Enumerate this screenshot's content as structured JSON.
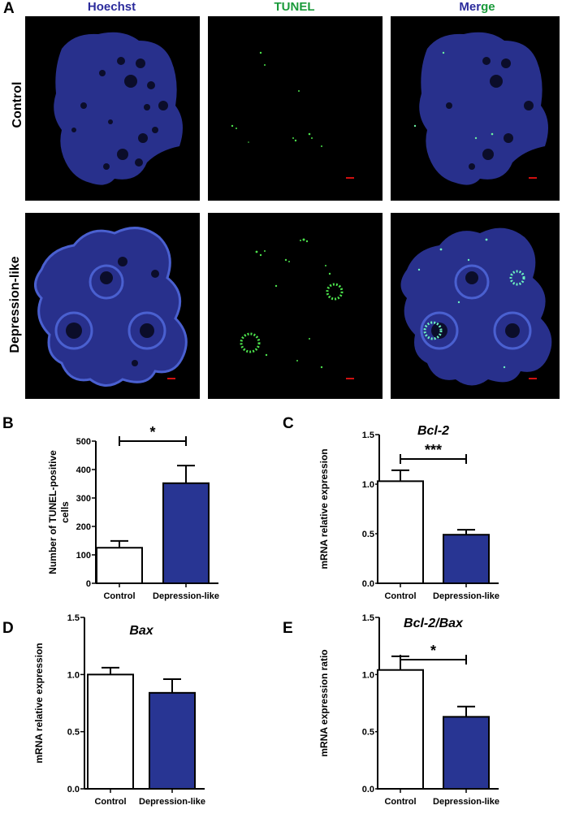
{
  "panel_a": {
    "letter": "A",
    "columns": [
      "Hoechst",
      "TUNEL",
      "Merge"
    ],
    "merge_parts": [
      "Mer",
      "ge"
    ],
    "rows": [
      "Control",
      "Depression-like"
    ],
    "colors": {
      "hoechst_label": "#2c2c9c",
      "tunel_label": "#1a9a3a",
      "blue_tissue": "#28308c",
      "green_signal": "#4be04b",
      "scale_bar": "#d01010"
    }
  },
  "chart_data": [
    {
      "panel": "B",
      "type": "bar",
      "title": "",
      "categories": [
        "Control",
        "Depression-like"
      ],
      "values": [
        125,
        352
      ],
      "errors": [
        24,
        62
      ],
      "ylabel": "Number of TUNEL-positive cells",
      "ylabel_lines": [
        "Number of TUNEL-positive",
        "cells"
      ],
      "ylim": [
        0,
        500
      ],
      "yticks": [
        "0",
        "100",
        "200",
        "300",
        "400",
        "500"
      ],
      "significance": "*",
      "bar_colors": [
        "#ffffff",
        "#283593"
      ]
    },
    {
      "panel": "C",
      "type": "bar",
      "title": "Bcl-2",
      "categories": [
        "Control",
        "Depression-like"
      ],
      "values": [
        1.03,
        0.49
      ],
      "errors": [
        0.11,
        0.05
      ],
      "ylabel": "mRNA relative expression",
      "ylim": [
        0,
        1.5
      ],
      "yticks": [
        "0.0",
        "0.5",
        "1.0",
        "1.5"
      ],
      "significance": "***",
      "bar_colors": [
        "#ffffff",
        "#283593"
      ]
    },
    {
      "panel": "D",
      "type": "bar",
      "title": "Bax",
      "categories": [
        "Control",
        "Depression-like"
      ],
      "values": [
        1.0,
        0.84
      ],
      "errors": [
        0.06,
        0.12
      ],
      "ylabel": "mRNA relative expression",
      "ylim": [
        0,
        1.5
      ],
      "yticks": [
        "0.0",
        "0.5",
        "1.0",
        "1.5"
      ],
      "significance": "",
      "bar_colors": [
        "#ffffff",
        "#283593"
      ]
    },
    {
      "panel": "E",
      "type": "bar",
      "title": "Bcl-2/Bax",
      "categories": [
        "Control",
        "Depression-like"
      ],
      "values": [
        1.04,
        0.63
      ],
      "errors": [
        0.12,
        0.09
      ],
      "ylabel": "mRNA expression ratio",
      "ylim": [
        0,
        1.5
      ],
      "yticks": [
        "0.0",
        "0.5",
        "1.0",
        "1.5"
      ],
      "significance": "*",
      "bar_colors": [
        "#ffffff",
        "#283593"
      ]
    }
  ]
}
